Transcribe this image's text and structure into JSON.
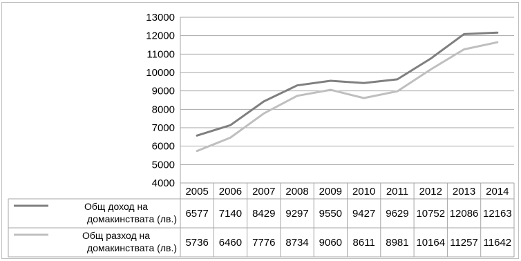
{
  "chart_data": {
    "type": "line",
    "x": [
      "2005",
      "2006",
      "2007",
      "2008",
      "2009",
      "2010",
      "2011",
      "2012",
      "2013",
      "2014"
    ],
    "ylim": [
      4000,
      13000
    ],
    "yticks": [
      "13000",
      "12000",
      "11000",
      "10000",
      "9000",
      "8000",
      "7000",
      "6000",
      "5000",
      "4000"
    ],
    "grid": true,
    "legend": "data-table-below",
    "series": [
      {
        "name_lines": [
          "Общ доход на",
          "домакинствата (лв.)"
        ],
        "color": "#7f7f7f",
        "values": [
          6577,
          7140,
          8429,
          9297,
          9550,
          9427,
          9629,
          10752,
          12086,
          12163
        ],
        "labels": [
          "6577",
          "7140",
          "8429",
          "9297",
          "9550",
          "9427",
          "9629",
          "10752",
          "12086",
          "12163"
        ]
      },
      {
        "name_lines": [
          "Общ разход на",
          "домакинствата (лв.)"
        ],
        "color": "#bfbfbf",
        "values": [
          5736,
          6460,
          7776,
          8734,
          9060,
          8611,
          8981,
          10164,
          11257,
          11642
        ],
        "labels": [
          "5736",
          "6460",
          "7776",
          "8734",
          "9060",
          "8611",
          "8981",
          "10164",
          "11257",
          "11642"
        ]
      }
    ]
  }
}
